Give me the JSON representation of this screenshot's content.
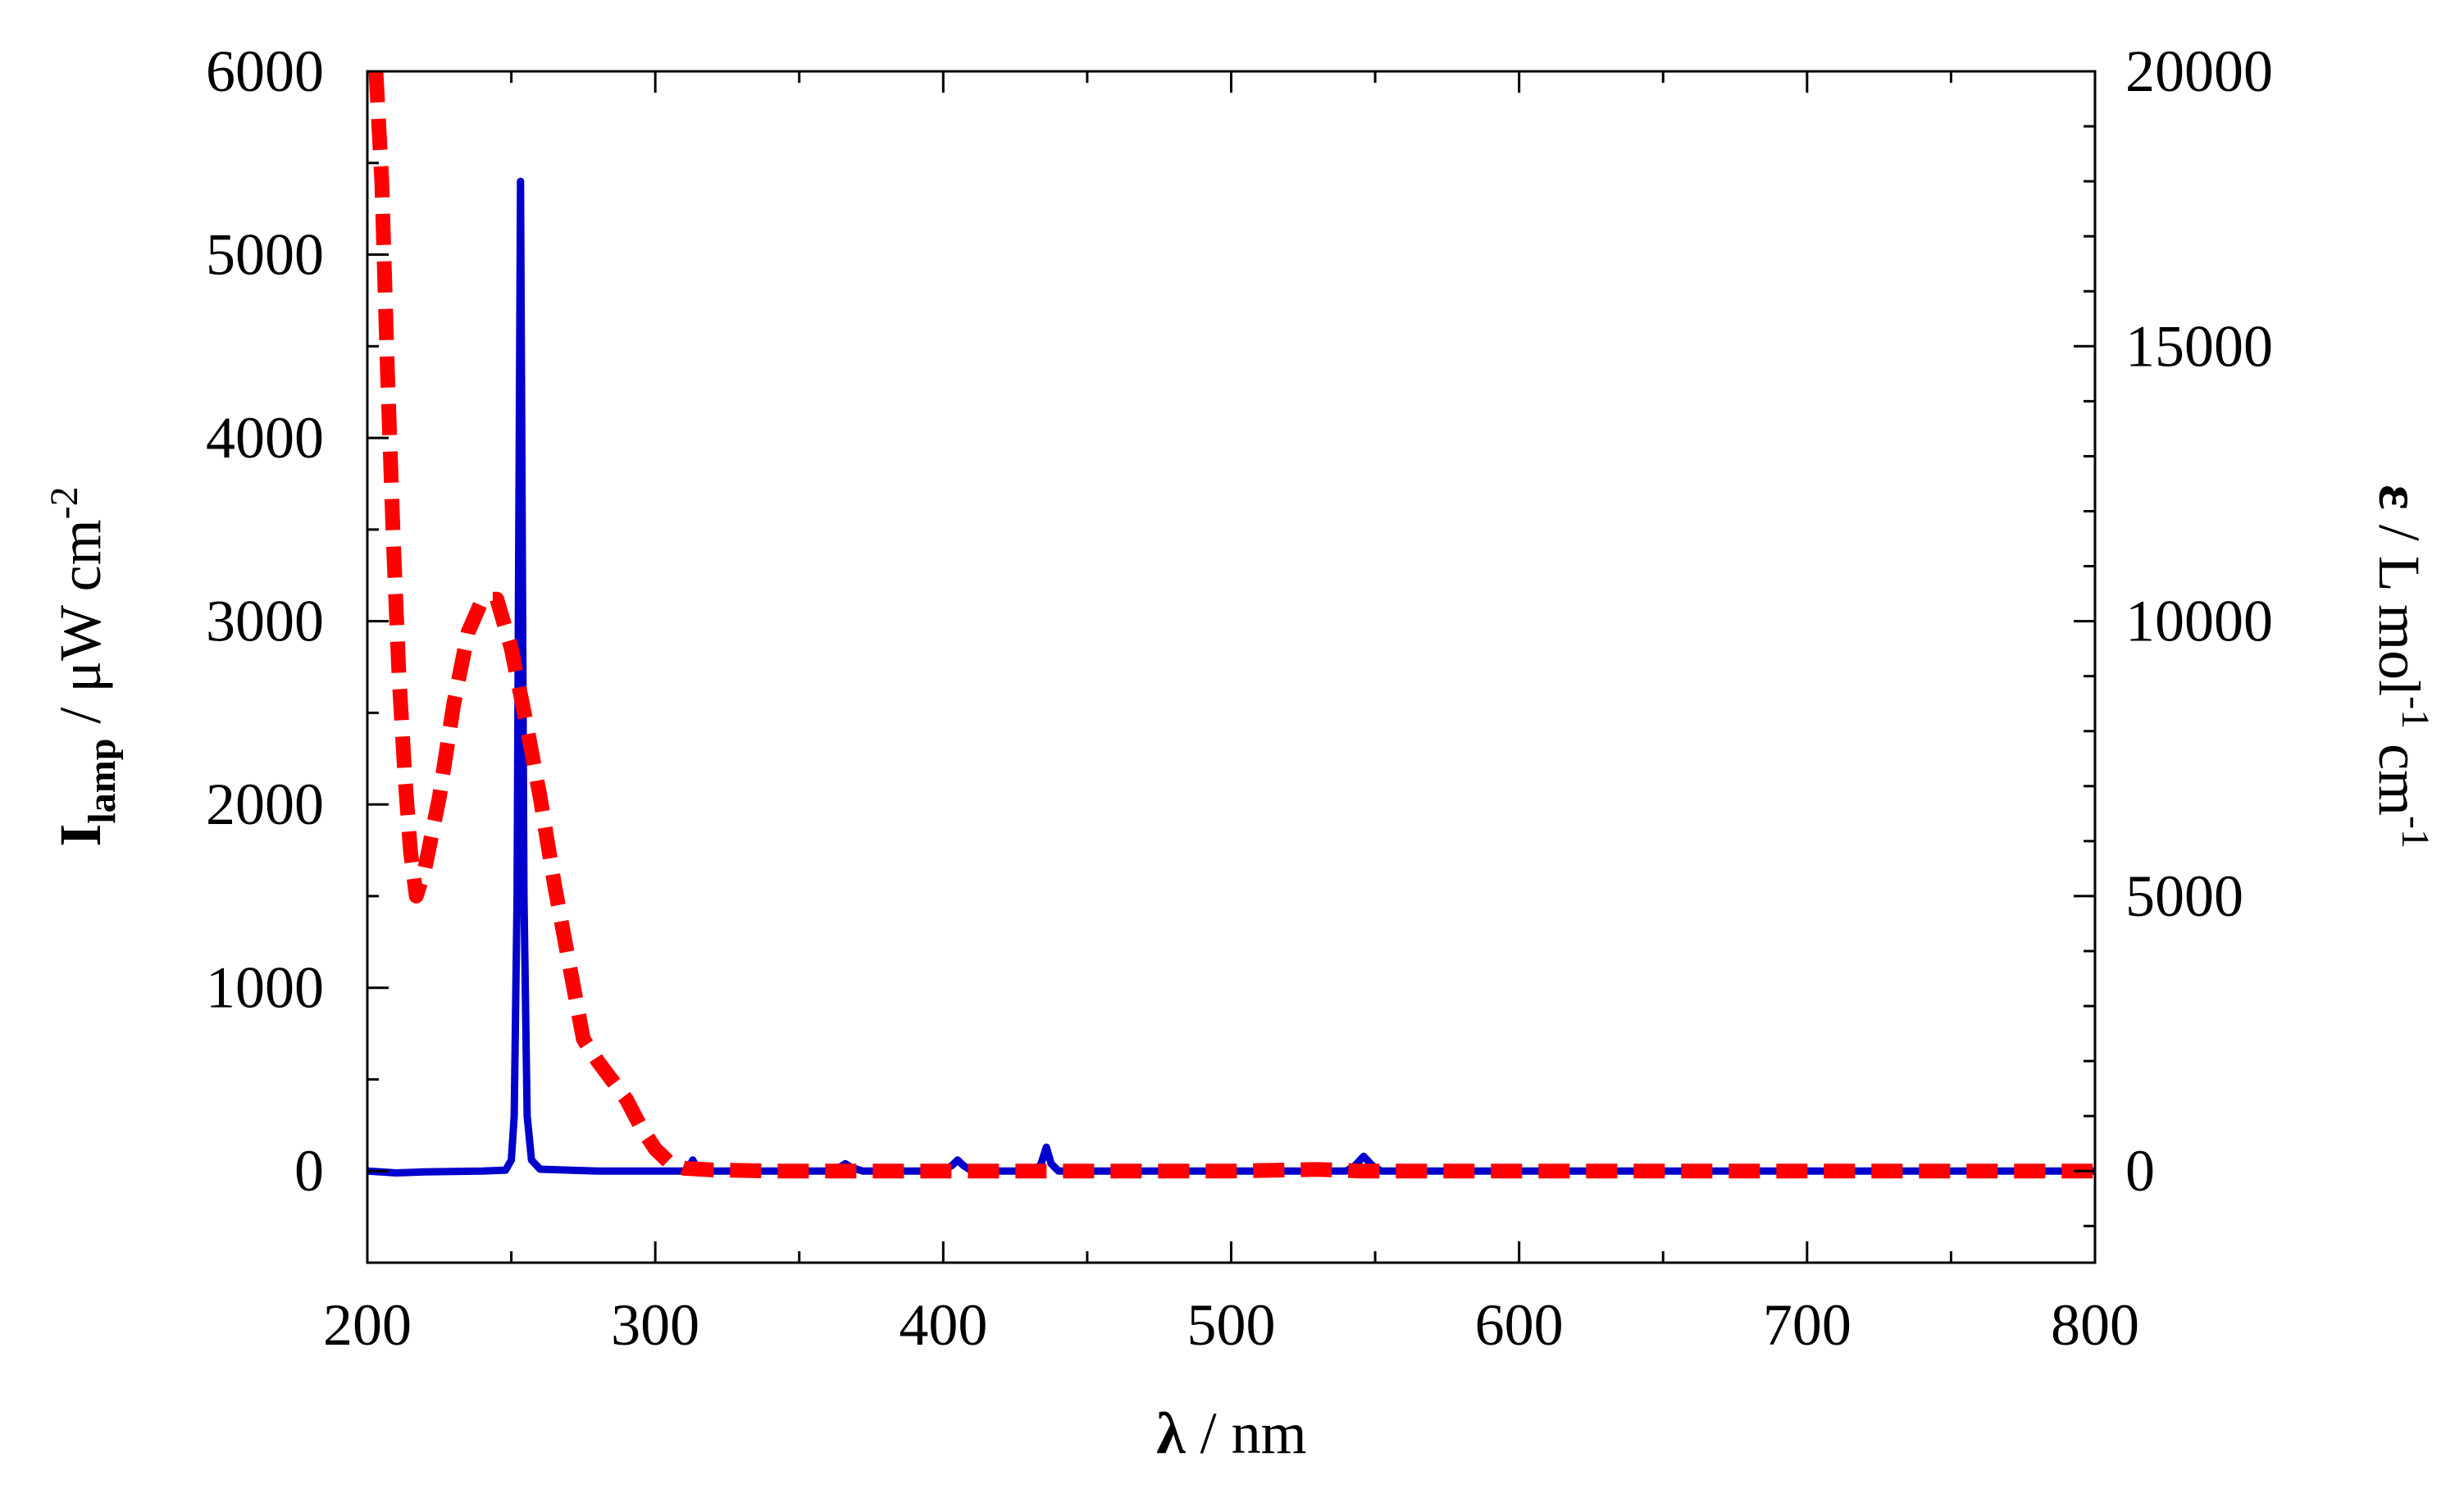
{
  "chart_data": {
    "type": "line",
    "xlabel": {
      "symbol": "λ",
      "rest": " / nm"
    },
    "ylabel_left": {
      "symbol": "I",
      "subscript": "lamp",
      "rest": " / μW cm",
      "superscript": "-2"
    },
    "ylabel_right": {
      "symbol": "ε",
      "rest1": " / L mol",
      "sup1": "-1",
      "rest2": " cm",
      "sup2": "-1"
    },
    "xlim": [
      200,
      800
    ],
    "ylim_left": [
      -500,
      6000
    ],
    "ylim_right": [
      -1667,
      20000
    ],
    "x_ticks": [
      "200",
      "300",
      "400",
      "500",
      "600",
      "700",
      "800"
    ],
    "y_left_ticks": [
      "0",
      "1000",
      "2000",
      "3000",
      "4000",
      "5000",
      "6000"
    ],
    "y_right_ticks": [
      "0",
      "5000",
      "10000",
      "15000",
      "20000"
    ],
    "grid": false,
    "series": [
      {
        "axis": "left",
        "color": "#0000cc",
        "style": "solid",
        "points": [
          [
            200,
            0
          ],
          [
            210,
            -10
          ],
          [
            220,
            -5
          ],
          [
            240,
            0
          ],
          [
            248,
            5
          ],
          [
            250,
            60
          ],
          [
            251,
            300
          ],
          [
            252,
            1500
          ],
          [
            252.6,
            3500
          ],
          [
            253.2,
            5400
          ],
          [
            253.8,
            3500
          ],
          [
            254.4,
            1500
          ],
          [
            255.5,
            300
          ],
          [
            257,
            60
          ],
          [
            260,
            10
          ],
          [
            280,
            0
          ],
          [
            300,
            0
          ],
          [
            310,
            0
          ],
          [
            312,
            30
          ],
          [
            313,
            60
          ],
          [
            314,
            30
          ],
          [
            316,
            0
          ],
          [
            330,
            0
          ],
          [
            360,
            0
          ],
          [
            364,
            20
          ],
          [
            366,
            40
          ],
          [
            368,
            20
          ],
          [
            372,
            0
          ],
          [
            400,
            0
          ],
          [
            403,
            30
          ],
          [
            405,
            60
          ],
          [
            407,
            30
          ],
          [
            410,
            0
          ],
          [
            432,
            0
          ],
          [
            434,
            40
          ],
          [
            435.8,
            130
          ],
          [
            437.5,
            40
          ],
          [
            440,
            0
          ],
          [
            540,
            0
          ],
          [
            543,
            30
          ],
          [
            546,
            80
          ],
          [
            549,
            30
          ],
          [
            552,
            0
          ],
          [
            600,
            0
          ],
          [
            700,
            0
          ],
          [
            800,
            0
          ]
        ]
      },
      {
        "axis": "right",
        "color": "#ff0000",
        "style": "dashed",
        "points": [
          [
            203,
            20000
          ],
          [
            205,
            18000
          ],
          [
            207,
            14500
          ],
          [
            209,
            11500
          ],
          [
            211,
            9000
          ],
          [
            213,
            7200
          ],
          [
            215,
            5800
          ],
          [
            217,
            5000
          ],
          [
            220,
            5500
          ],
          [
            225,
            6800
          ],
          [
            230,
            8500
          ],
          [
            235,
            9800
          ],
          [
            240,
            10400
          ],
          [
            245,
            10400
          ],
          [
            250,
            9500
          ],
          [
            255,
            8200
          ],
          [
            260,
            6800
          ],
          [
            265,
            5200
          ],
          [
            270,
            3800
          ],
          [
            275,
            2400
          ],
          [
            280,
            2000
          ],
          [
            285,
            1650
          ],
          [
            290,
            1300
          ],
          [
            295,
            800
          ],
          [
            300,
            400
          ],
          [
            305,
            150
          ],
          [
            310,
            50
          ],
          [
            320,
            20
          ],
          [
            340,
            0
          ],
          [
            360,
            0
          ],
          [
            380,
            0
          ],
          [
            400,
            0
          ],
          [
            500,
            0
          ],
          [
            530,
            30
          ],
          [
            545,
            0
          ],
          [
            600,
            0
          ],
          [
            700,
            0
          ],
          [
            800,
            0
          ]
        ]
      }
    ]
  }
}
